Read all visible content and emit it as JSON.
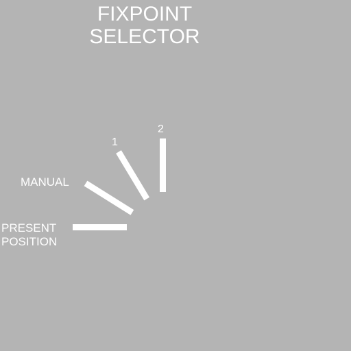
{
  "title": {
    "line1": "FIXPOINT",
    "line2": "SELECTOR"
  },
  "positions": [
    {
      "id": "present-position",
      "label_lines": [
        "PRESENT",
        "POSITION"
      ]
    },
    {
      "id": "manual",
      "label": "MANUAL"
    },
    {
      "id": "one",
      "label": "1"
    },
    {
      "id": "two",
      "label": "2"
    }
  ],
  "colors": {
    "background": "#b4b4b4",
    "foreground": "#ffffff"
  }
}
